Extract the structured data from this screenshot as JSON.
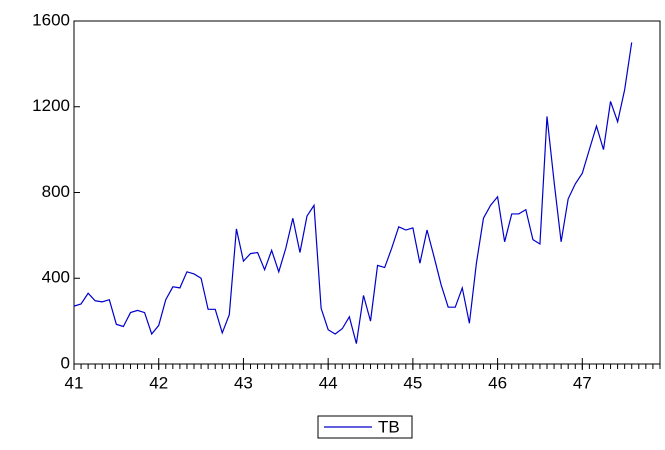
{
  "chart_data": {
    "type": "line",
    "x": [
      41,
      41.083,
      41.167,
      41.25,
      41.333,
      41.417,
      41.5,
      41.583,
      41.667,
      41.75,
      41.833,
      41.917,
      42,
      42.083,
      42.167,
      42.25,
      42.333,
      42.417,
      42.5,
      42.583,
      42.667,
      42.75,
      42.833,
      42.917,
      43,
      43.083,
      43.167,
      43.25,
      43.333,
      43.417,
      43.5,
      43.583,
      43.667,
      43.75,
      43.833,
      43.917,
      44,
      44.083,
      44.167,
      44.25,
      44.333,
      44.417,
      44.5,
      44.583,
      44.667,
      44.75,
      44.833,
      44.917,
      45,
      45.083,
      45.167,
      45.25,
      45.333,
      45.417,
      45.5,
      45.583,
      45.667,
      45.75,
      45.833,
      45.917,
      46,
      46.083,
      46.167,
      46.25,
      46.333,
      46.417,
      46.5,
      46.583,
      46.667,
      46.75,
      46.833,
      46.917,
      47,
      47.083,
      47.167,
      47.25,
      47.333,
      47.417,
      47.5,
      47.583
    ],
    "series": [
      {
        "name": "TB",
        "color": "#0000cc",
        "values": [
          270,
          280,
          330,
          295,
          290,
          300,
          185,
          175,
          240,
          250,
          240,
          140,
          180,
          300,
          360,
          355,
          430,
          420,
          400,
          255,
          255,
          145,
          230,
          630,
          480,
          515,
          520,
          440,
          530,
          430,
          540,
          680,
          520,
          690,
          740,
          260,
          160,
          140,
          165,
          220,
          95,
          320,
          200,
          460,
          450,
          540,
          640,
          625,
          635,
          470,
          625,
          500,
          370,
          265,
          265,
          355,
          190,
          470,
          680,
          740,
          780,
          570,
          700,
          700,
          720,
          580,
          560,
          1155,
          850,
          570,
          770,
          840,
          890,
          1000,
          1110,
          1000,
          1225,
          1130,
          1280,
          1500
        ]
      }
    ],
    "xlim": [
      41,
      47.917
    ],
    "xticks": [
      41,
      42,
      43,
      44,
      45,
      46,
      47
    ],
    "ylim": [
      0,
      1600
    ],
    "yticks": [
      0,
      400,
      800,
      1200,
      1600
    ]
  }
}
